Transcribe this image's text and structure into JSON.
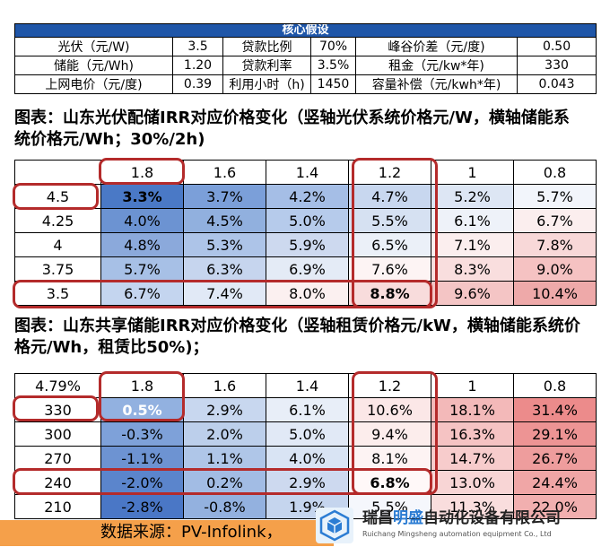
{
  "assumptions": {
    "title": "核心假设",
    "rows": [
      [
        "光伏（元/W)",
        "3.5",
        "贷款比例",
        "70%",
        "峰谷价差（元/度)",
        "0.50"
      ],
      [
        "储能（元/Wh)",
        "1.20",
        "贷款利率",
        "3.5%",
        "租金（元/kw*年)",
        "330"
      ],
      [
        "上网电价（元/度)",
        "0.39",
        "利用小时（h)",
        "1450",
        "容量补偿（元/kwh*年)",
        "0.043"
      ]
    ]
  },
  "caption1": "图表：山东光伏配储IRR对应价格变化（竖轴光伏系统价格元/W，横轴储能系统价格元/Wh；30%/2h)",
  "caption2": "图表：山东共享储能IRR对应价格变化（竖轴租赁价格元/kW，横轴储能系统价格元/Wh，租赁比50%)；",
  "table1": {
    "corner": "",
    "columns": [
      "1.8",
      "1.6",
      "1.4",
      "1.2",
      "1",
      "0.8"
    ],
    "rows": [
      {
        "label": "4.5",
        "values": [
          "3.3%",
          "3.7%",
          "4.2%",
          "4.7%",
          "5.2%",
          "5.7%"
        ]
      },
      {
        "label": "4.25",
        "values": [
          "4.0%",
          "4.5%",
          "5.0%",
          "5.5%",
          "6.1%",
          "6.7%"
        ]
      },
      {
        "label": "4",
        "values": [
          "4.8%",
          "5.3%",
          "5.9%",
          "6.5%",
          "7.1%",
          "7.8%"
        ]
      },
      {
        "label": "3.75",
        "values": [
          "5.7%",
          "6.3%",
          "6.9%",
          "7.6%",
          "8.3%",
          "9.0%"
        ]
      },
      {
        "label": "3.5",
        "values": [
          "6.7%",
          "7.4%",
          "8.0%",
          "8.8%",
          "9.6%",
          "10.4%"
        ]
      }
    ],
    "colors": [
      [
        "#4a79c6",
        "#7b9fd9",
        "#a5bee6",
        "#c8d7ef",
        "#dde6f4",
        "#f2f5fb"
      ],
      [
        "#6c93d2",
        "#91b0de",
        "#b6cbeb",
        "#d6e1f2",
        "#eef2f9",
        "#fbeeee"
      ],
      [
        "#8ba9db",
        "#adc4e8",
        "#cdd9ef",
        "#ebf0f8",
        "#fbeeee",
        "#f8d8d8"
      ],
      [
        "#a7c0e6",
        "#c6d5ee",
        "#e4ebf6",
        "#fdf4f4",
        "#f9dede",
        "#f5c2c2"
      ],
      [
        "#c4d5ef",
        "#e1e9f6",
        "#fbf0f0",
        "#f8dcdc",
        "#f4c5c5",
        "#eea9a9"
      ]
    ],
    "bold_cells": [
      [
        0,
        0
      ],
      [
        4,
        3
      ]
    ]
  },
  "table2": {
    "corner": "4.79%",
    "columns": [
      "1.8",
      "1.6",
      "1.4",
      "1.2",
      "1",
      "0.8"
    ],
    "rows": [
      {
        "label": "330",
        "values": [
          "0.5%",
          "2.9%",
          "6.1%",
          "10.6%",
          "18.1%",
          "31.4%"
        ]
      },
      {
        "label": "300",
        "values": [
          "-0.3%",
          "2.0%",
          "5.0%",
          "9.4%",
          "16.3%",
          "29.1%"
        ]
      },
      {
        "label": "270",
        "values": [
          "-1.1%",
          "1.1%",
          "4.0%",
          "8.1%",
          "14.7%",
          "26.7%"
        ]
      },
      {
        "label": "240",
        "values": [
          "-2.0%",
          "0.2%",
          "2.9%",
          "6.8%",
          "13.0%",
          "24.4%"
        ]
      },
      {
        "label": "210",
        "values": [
          "-2.8%",
          "-0.8%",
          "1.9%",
          "5.5%",
          "11.3%",
          "22.0%"
        ]
      }
    ],
    "colors": [
      [
        "#92b1e0",
        "#c8d7ef",
        "#e8eef8",
        "#fbe7e7",
        "#f3b9b9",
        "#ec8b8b"
      ],
      [
        "#7ea1d9",
        "#bccfeb",
        "#e1e9f6",
        "#fcedec",
        "#f5c3c3",
        "#ed9494"
      ],
      [
        "#6d93d2",
        "#afc6e8",
        "#d9e4f4",
        "#fdf3f3",
        "#f7cccc",
        "#ee9d9d"
      ],
      [
        "#5b85cc",
        "#a2bce4",
        "#cdd9ef",
        "#fff8f8",
        "#f8d5d5",
        "#f0a6a6"
      ],
      [
        "#4a77c6",
        "#93b1df",
        "#c5d5ee",
        "#f5f7fc",
        "#f9dddd",
        "#f1afaf"
      ]
    ],
    "bold_cells": [
      [
        3,
        3
      ]
    ],
    "white_text_cells": [
      [
        0,
        0
      ]
    ]
  },
  "footer": {
    "source": "数据来源：PV-Infolink，",
    "company_cn_a": "瑞昌",
    "company_cn_b": "明盛",
    "company_cn_c": "自动化设备有限公司",
    "company_en": "Ruichang Mingsheng automation equipment Co., Ltd",
    "logo_icon": "cube-logo-icon"
  }
}
